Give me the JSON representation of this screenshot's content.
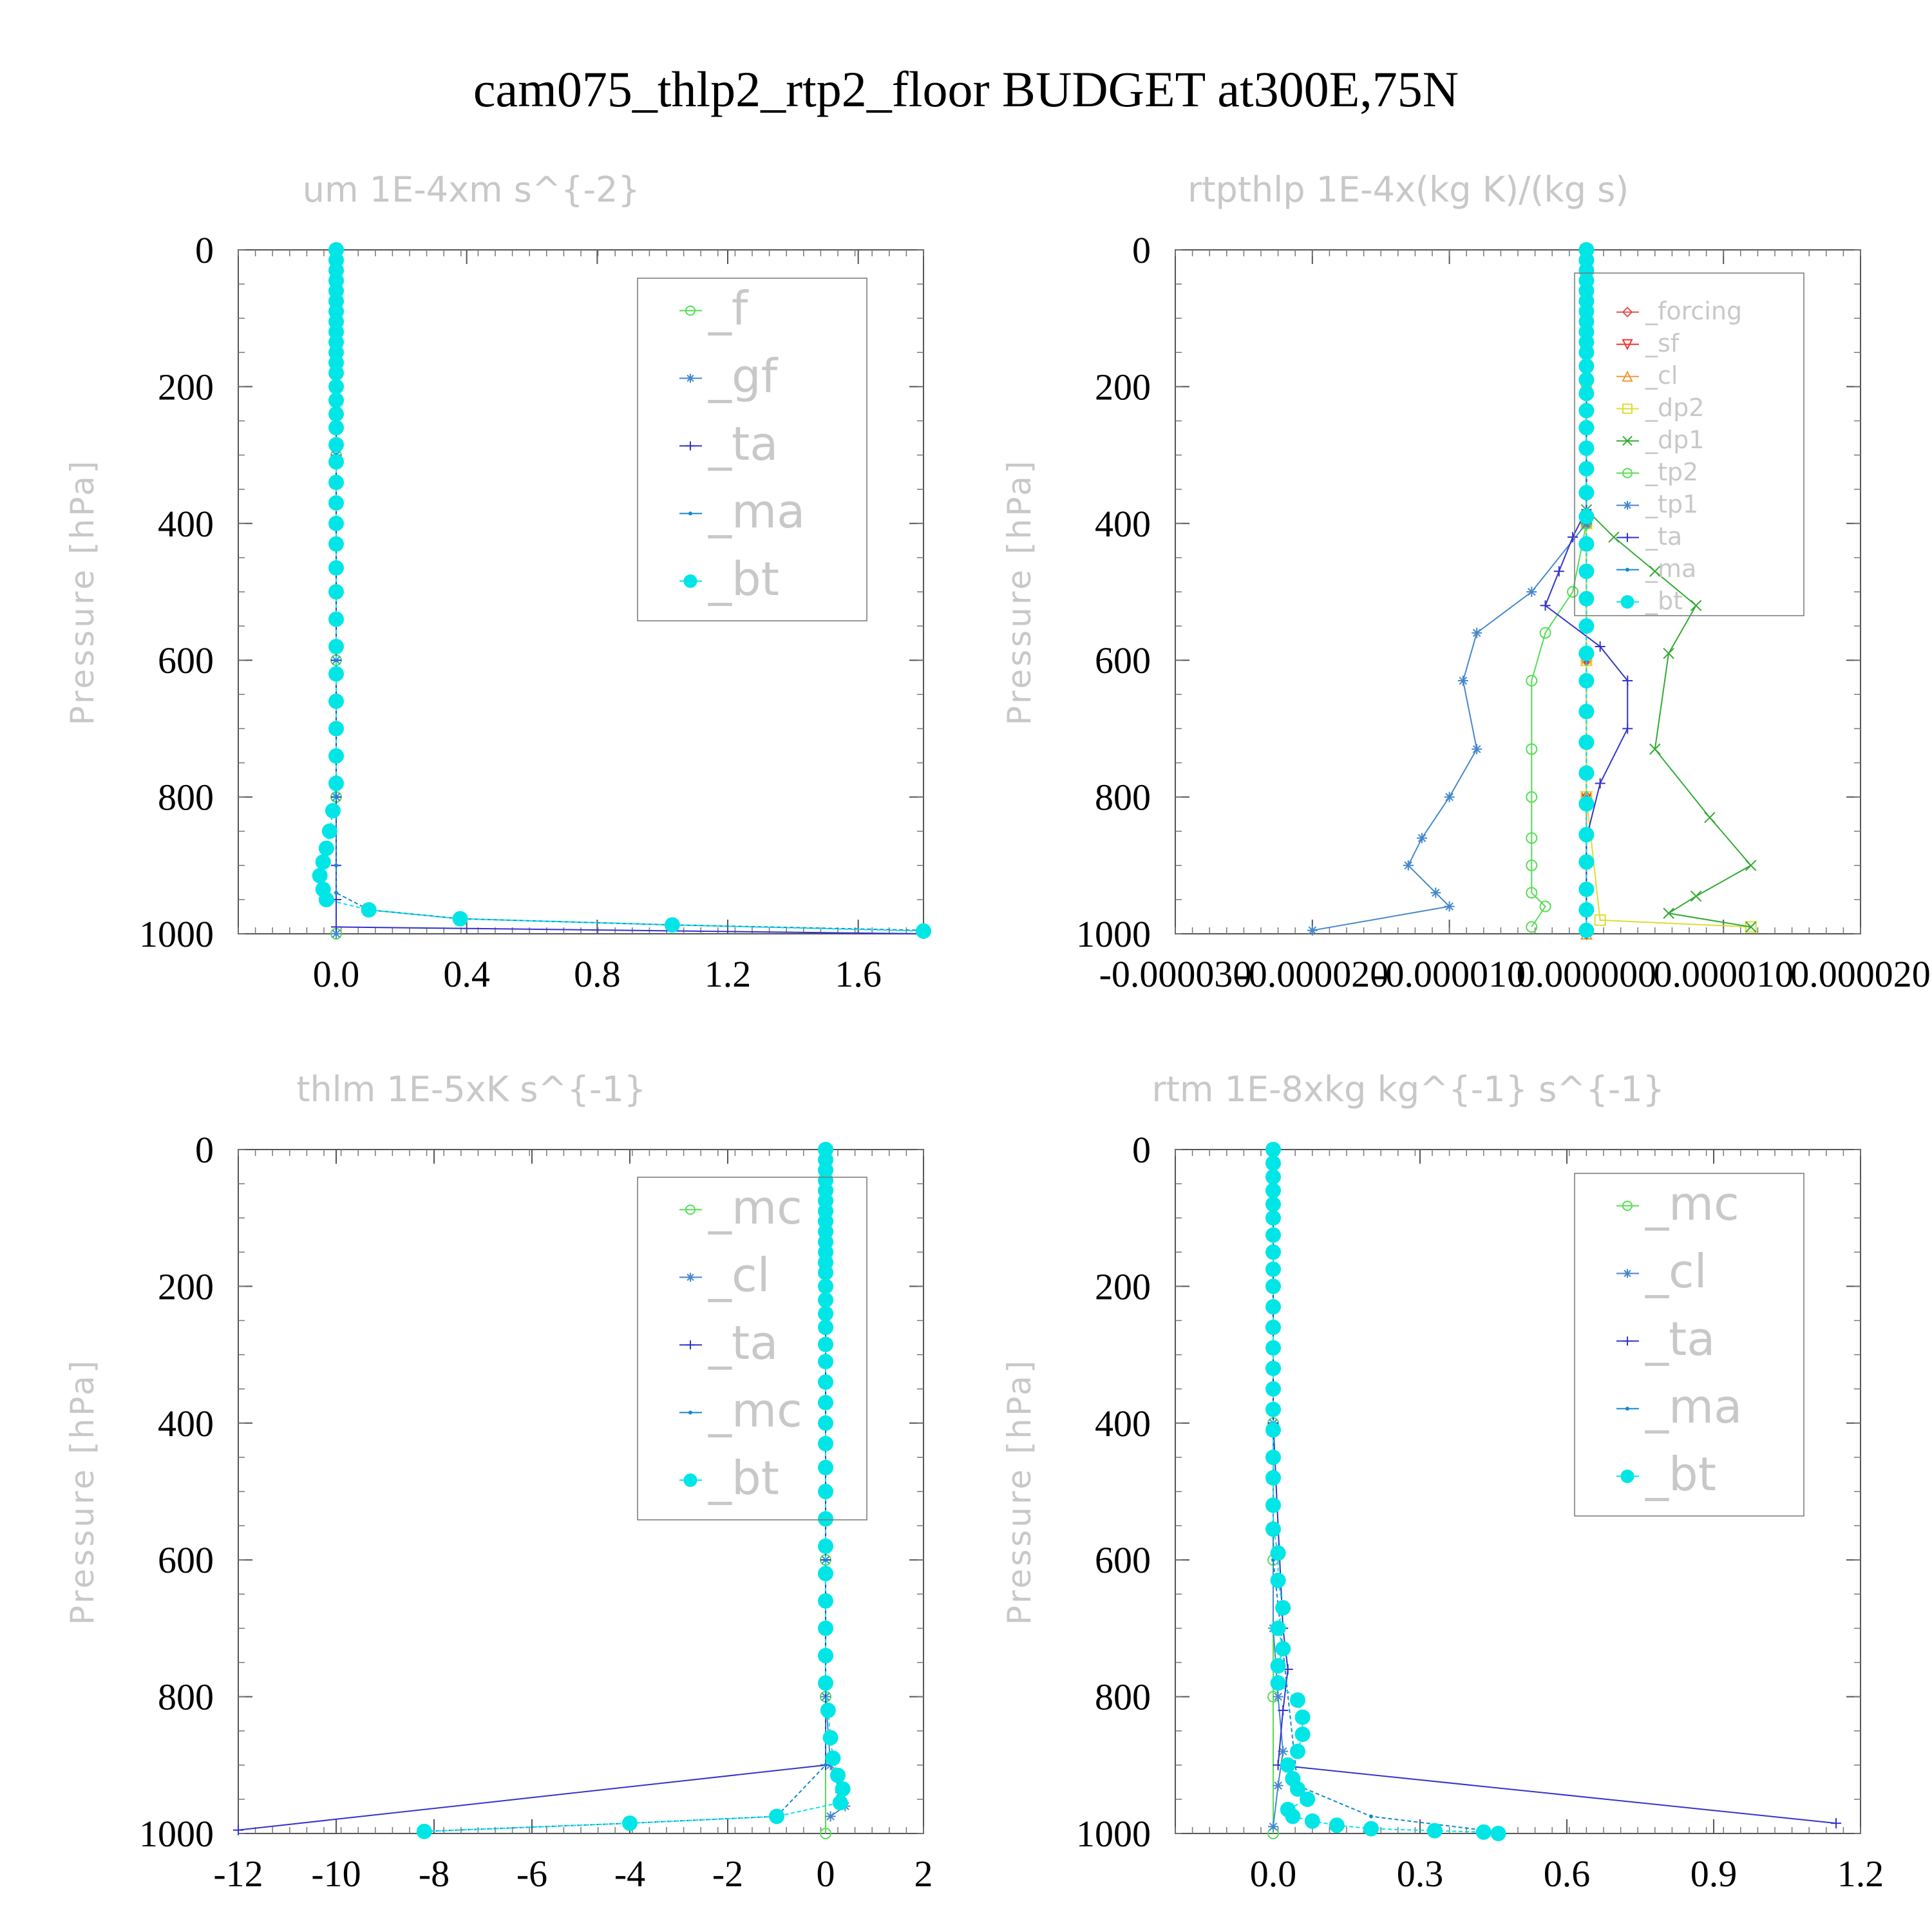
{
  "title": "cam075_thlp2_rtp2_floor  BUDGET at300E,75N",
  "chart_data": [
    {
      "type": "line",
      "title": "um  1E-4xm s^{-2}",
      "ylabel": "Pressure [hPa]",
      "xlim": [
        -0.3,
        1.8
      ],
      "ylim": [
        1000,
        0
      ],
      "xticks": [
        "0.0",
        "0.4",
        "0.8",
        "1.2",
        "1.6"
      ],
      "xtick_values": [
        0,
        0.4,
        0.8,
        1.2,
        1.6
      ],
      "yticks": [
        "0",
        "200",
        "400",
        "600",
        "800",
        "1000"
      ],
      "legend": [
        "_f",
        "_gf",
        "_ta",
        "_ma",
        "_bt"
      ],
      "series": [
        {
          "name": "_f",
          "color": "#55dd55",
          "marker": "circle",
          "x": [
            0,
            0,
            0,
            0,
            0,
            0,
            0,
            0,
            0,
            0
          ],
          "y": [
            0,
            100,
            200,
            300,
            400,
            500,
            600,
            700,
            800,
            1000
          ]
        },
        {
          "name": "_gf",
          "color": "#4488cc",
          "marker": "star",
          "x": [
            0,
            0,
            0,
            0,
            0,
            0,
            0,
            0,
            0,
            0
          ],
          "y": [
            0,
            100,
            200,
            300,
            400,
            500,
            600,
            700,
            800,
            1000
          ]
        },
        {
          "name": "_ta",
          "color": "#3333cc",
          "marker": "plus",
          "x": [
            0,
            0,
            0,
            0,
            0,
            0,
            0,
            0,
            1.8
          ],
          "y": [
            0,
            200,
            400,
            600,
            800,
            900,
            950,
            990,
            1000
          ]
        },
        {
          "name": "_ma",
          "color": "#1188cc",
          "marker": "dot",
          "x": [
            0,
            0,
            0,
            0,
            0,
            0,
            0,
            0.1,
            0.38,
            1.03,
            1.8
          ],
          "y": [
            0,
            200,
            400,
            600,
            800,
            900,
            940,
            965,
            978,
            987,
            995
          ]
        },
        {
          "name": "_bt",
          "color": "#00e5e5",
          "marker": "filled",
          "x": [
            0,
            0,
            0,
            0,
            0,
            0,
            0,
            0,
            0,
            0,
            0,
            0,
            0,
            0,
            0,
            0,
            0,
            0,
            0,
            0,
            0,
            0,
            0,
            0,
            0,
            0,
            0,
            0,
            0,
            0,
            0,
            0,
            -0.01,
            -0.02,
            -0.03,
            -0.04,
            -0.05,
            -0.04,
            -0.03,
            0.1,
            0.38,
            1.03,
            1.8
          ],
          "y": [
            0,
            15,
            30,
            45,
            60,
            75,
            90,
            105,
            120,
            135,
            150,
            165,
            180,
            200,
            220,
            240,
            260,
            285,
            310,
            340,
            370,
            400,
            430,
            465,
            500,
            540,
            580,
            620,
            660,
            700,
            740,
            780,
            820,
            850,
            875,
            895,
            915,
            935,
            950,
            965,
            978,
            987,
            996
          ]
        }
      ]
    },
    {
      "type": "line",
      "title": "rtpthlp  1E-4x(kg K)/(kg s)",
      "ylabel": "Pressure [hPa]",
      "xlim": [
        -3e-05,
        2e-05
      ],
      "ylim": [
        1000,
        0
      ],
      "xticks": [
        "-0.000030",
        "-0.000020",
        "-0.000010",
        "0.000000",
        "0.000010",
        "0.000020"
      ],
      "xtick_values": [
        -3e-05,
        -2e-05,
        -1e-05,
        0,
        1e-05,
        2e-05
      ],
      "yticks": [
        "0",
        "200",
        "400",
        "600",
        "800",
        "1000"
      ],
      "legend": [
        "_forcing",
        "_sf",
        "_cl",
        "_dp2",
        "_dp1",
        "_tp2",
        "_tp1",
        "_ta",
        "_ma",
        "_bt"
      ],
      "series": [
        {
          "name": "_forcing",
          "color": "#dd5555",
          "marker": "diamond",
          "x": [
            0,
            0,
            0,
            0,
            0,
            0
          ],
          "y": [
            0,
            200,
            400,
            600,
            800,
            1000
          ]
        },
        {
          "name": "_sf",
          "color": "#ee3333",
          "marker": "tri-down",
          "x": [
            0,
            0,
            0,
            0,
            0,
            0
          ],
          "y": [
            0,
            200,
            400,
            600,
            800,
            1000
          ]
        },
        {
          "name": "_cl",
          "color": "#ee9933",
          "marker": "tri-up",
          "x": [
            0,
            0,
            0,
            0,
            0,
            0
          ],
          "y": [
            0,
            200,
            400,
            600,
            800,
            1000
          ]
        },
        {
          "name": "_dp2",
          "color": "#dddd33",
          "marker": "square",
          "x": [
            0,
            0,
            0,
            0,
            0,
            1e-06,
            1.2e-05
          ],
          "y": [
            0,
            200,
            400,
            600,
            800,
            980,
            990
          ]
        },
        {
          "name": "_dp1",
          "color": "#33aa33",
          "marker": "cross",
          "x": [
            0,
            0,
            2e-06,
            5e-06,
            8e-06,
            6e-06,
            5e-06,
            9e-06,
            1.2e-05,
            8e-06,
            6e-06,
            1.2e-05
          ],
          "y": [
            0,
            380,
            420,
            470,
            520,
            590,
            730,
            830,
            900,
            945,
            970,
            990
          ]
        },
        {
          "name": "_tp2",
          "color": "#55dd55",
          "marker": "circle",
          "x": [
            0,
            0,
            -1e-06,
            -3e-06,
            -4e-06,
            -4e-06,
            -4e-06,
            -4e-06,
            -4e-06,
            -4e-06,
            -3e-06,
            -4e-06
          ],
          "y": [
            0,
            400,
            500,
            560,
            630,
            730,
            800,
            860,
            900,
            940,
            960,
            990
          ]
        },
        {
          "name": "_tp1",
          "color": "#4488cc",
          "marker": "star",
          "x": [
            0,
            0,
            -4e-06,
            -8e-06,
            -9e-06,
            -8e-06,
            -1e-05,
            -1.2e-05,
            -1.3e-05,
            -1.1e-05,
            -1e-05,
            -2e-05
          ],
          "y": [
            0,
            400,
            500,
            560,
            630,
            730,
            800,
            860,
            900,
            940,
            960,
            995
          ]
        },
        {
          "name": "_ta",
          "color": "#3333cc",
          "marker": "plus",
          "x": [
            0,
            0,
            -1e-06,
            -2e-06,
            -3e-06,
            1e-06,
            3e-06,
            3e-06,
            1e-06,
            0,
            0
          ],
          "y": [
            0,
            380,
            420,
            470,
            520,
            580,
            630,
            700,
            780,
            860,
            1000
          ]
        },
        {
          "name": "_ma",
          "color": "#1188cc",
          "marker": "dot",
          "x": [
            0,
            0,
            0,
            0,
            0,
            0
          ],
          "y": [
            0,
            200,
            400,
            600,
            800,
            1000
          ]
        },
        {
          "name": "_bt",
          "color": "#00e5e5",
          "marker": "filled",
          "x": [
            0,
            0,
            0,
            0,
            0,
            0,
            0,
            0,
            0,
            0,
            0,
            0,
            0,
            0,
            0,
            0,
            0,
            0,
            0,
            0,
            0,
            0,
            0,
            0,
            0,
            0,
            0,
            0,
            0,
            0,
            0,
            0,
            0,
            0,
            0
          ],
          "y": [
            0,
            15,
            30,
            45,
            60,
            75,
            90,
            105,
            120,
            135,
            150,
            170,
            190,
            210,
            235,
            260,
            290,
            320,
            355,
            390,
            430,
            470,
            510,
            550,
            590,
            630,
            675,
            720,
            765,
            810,
            855,
            895,
            935,
            965,
            995
          ]
        }
      ]
    },
    {
      "type": "line",
      "title": "thlm  1E-5xK s^{-1}",
      "ylabel": "Pressure [hPa]",
      "xlim": [
        -12,
        2
      ],
      "ylim": [
        1000,
        0
      ],
      "xticks": [
        "-12",
        "-10",
        "-8",
        "-6",
        "-4",
        "-2",
        "0",
        "2"
      ],
      "xtick_values": [
        -12,
        -10,
        -8,
        -6,
        -4,
        -2,
        0,
        2
      ],
      "yticks": [
        "0",
        "200",
        "400",
        "600",
        "800",
        "1000"
      ],
      "legend": [
        "_mc",
        "_cl",
        "_ta",
        "_mc",
        "_bt"
      ],
      "series": [
        {
          "name": "_mc",
          "color": "#55dd55",
          "marker": "circle",
          "x": [
            0,
            0,
            0,
            0,
            0,
            0
          ],
          "y": [
            0,
            200,
            400,
            600,
            800,
            1000
          ]
        },
        {
          "name": "_cl",
          "color": "#4488cc",
          "marker": "star",
          "x": [
            0,
            0,
            0,
            0,
            0,
            0.1,
            0.3,
            0.4,
            0.1
          ],
          "y": [
            0,
            200,
            400,
            600,
            800,
            900,
            940,
            960,
            975
          ]
        },
        {
          "name": "_ta",
          "color": "#3333cc",
          "marker": "plus",
          "x": [
            0,
            0,
            0,
            0,
            0,
            -12
          ],
          "y": [
            0,
            200,
            400,
            600,
            900,
            995
          ]
        },
        {
          "name": "_mc",
          "color": "#1188cc",
          "marker": "dot",
          "x": [
            0,
            0,
            0,
            0,
            0,
            -1,
            -4,
            -8.2
          ],
          "y": [
            0,
            200,
            400,
            600,
            900,
            975,
            985,
            997
          ]
        },
        {
          "name": "_bt",
          "color": "#00e5e5",
          "marker": "filled",
          "x": [
            0,
            0,
            0,
            0,
            0,
            0,
            0,
            0,
            0,
            0,
            0,
            0,
            0,
            0,
            0,
            0,
            0,
            0,
            0,
            0,
            0,
            0,
            0,
            0,
            0,
            0,
            0,
            0,
            0,
            0,
            0,
            0,
            0.05,
            0.1,
            0.15,
            0.25,
            0.35,
            0.3,
            -1,
            -4,
            -8.2
          ],
          "y": [
            0,
            15,
            30,
            45,
            60,
            75,
            90,
            105,
            120,
            135,
            150,
            165,
            180,
            200,
            220,
            240,
            260,
            285,
            310,
            340,
            370,
            400,
            430,
            465,
            500,
            540,
            580,
            620,
            660,
            700,
            740,
            780,
            820,
            860,
            890,
            915,
            935,
            955,
            975,
            985,
            997
          ]
        }
      ]
    },
    {
      "type": "line",
      "title": "rtm  1E-8xkg kg^{-1} s^{-1}",
      "ylabel": "Pressure [hPa]",
      "xlim": [
        -0.2,
        1.2
      ],
      "ylim": [
        1000,
        0
      ],
      "xticks": [
        "0.0",
        "0.3",
        "0.6",
        "0.9",
        "1.2"
      ],
      "xtick_values": [
        0,
        0.3,
        0.6,
        0.9,
        1.2
      ],
      "yticks": [
        "0",
        "200",
        "400",
        "600",
        "800",
        "1000"
      ],
      "legend": [
        "_mc",
        "_cl",
        "_ta",
        "_ma",
        "_bt"
      ],
      "series": [
        {
          "name": "_mc",
          "color": "#55dd55",
          "marker": "circle",
          "x": [
            0,
            0,
            0,
            0,
            0,
            0
          ],
          "y": [
            0,
            200,
            400,
            600,
            800,
            1000
          ]
        },
        {
          "name": "_cl",
          "color": "#4488cc",
          "marker": "star",
          "x": [
            0,
            0,
            0,
            0,
            0.01,
            0.02,
            0.01,
            0
          ],
          "y": [
            0,
            200,
            400,
            700,
            800,
            880,
            930,
            990
          ]
        },
        {
          "name": "_ta",
          "color": "#3333cc",
          "marker": "plus",
          "x": [
            0,
            0,
            0,
            0.02,
            0.03,
            0.02,
            0.01,
            1.15
          ],
          "y": [
            0,
            200,
            400,
            700,
            760,
            820,
            900,
            985
          ]
        },
        {
          "name": "_ma",
          "color": "#1188cc",
          "marker": "dot",
          "x": [
            0,
            0,
            0,
            0.05,
            0.2,
            0.45
          ],
          "y": [
            0,
            200,
            600,
            930,
            975,
            997
          ]
        },
        {
          "name": "_bt",
          "color": "#00e5e5",
          "marker": "filled",
          "x": [
            0,
            0,
            0,
            0,
            0,
            0,
            0,
            0,
            0,
            0,
            0,
            0,
            0,
            0,
            0,
            0,
            0,
            0,
            0,
            0,
            0,
            0.01,
            0.01,
            0.02,
            0.01,
            0.02,
            0.01,
            0.01,
            0.05,
            0.06,
            0.06,
            0.05,
            0.03,
            0.04,
            0.05,
            0.07,
            0.03,
            0.04,
            0.08,
            0.13,
            0.2,
            0.33,
            0.43,
            0.46
          ],
          "y": [
            0,
            20,
            40,
            60,
            80,
            100,
            125,
            150,
            175,
            200,
            230,
            260,
            290,
            320,
            350,
            380,
            410,
            450,
            480,
            520,
            555,
            590,
            630,
            670,
            700,
            730,
            755,
            780,
            805,
            830,
            855,
            880,
            900,
            920,
            935,
            950,
            965,
            975,
            982,
            988,
            993,
            996,
            998,
            1000
          ]
        }
      ]
    }
  ]
}
